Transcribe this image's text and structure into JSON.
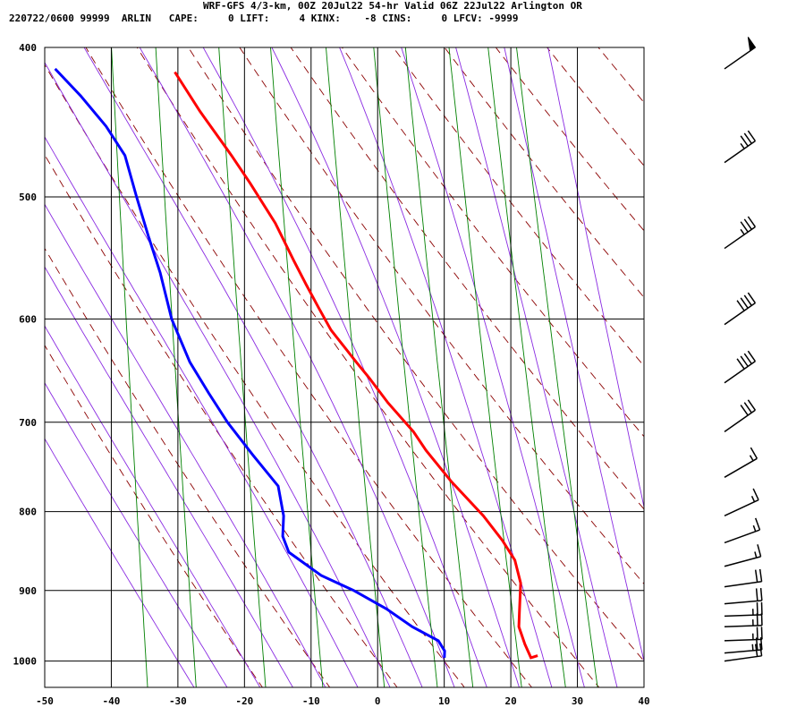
{
  "header": {
    "line1": "WRF-GFS 4/3-km, 00Z 20Jul22 54-hr Valid 06Z 22Jul22 Arlington OR",
    "line2": "220722/0600 99999  ARLIN   CAPE:     0 LIFT:     4 KINX:    -8 CINS:     0 LFCV: -9999"
  },
  "colors": {
    "temperature": "#ff0000",
    "dewpoint": "#0000ff",
    "dry_adiabat": "#8b0000",
    "moist_adiabat": "#8a2be2",
    "mixing_ratio": "#008000",
    "grid": "#000000"
  },
  "chart_data": {
    "type": "line",
    "subtype": "skew-T log-p sounding",
    "x_axis": {
      "unit": "degC",
      "range": [
        -50,
        40
      ],
      "ticks": [
        "-50",
        "-40",
        "-30",
        "-20",
        "-10",
        "0",
        "10",
        "20",
        "30",
        "40"
      ]
    },
    "y_axis": {
      "unit": "hPa",
      "scale": "log",
      "range": [
        1040,
        400
      ],
      "ticks": [
        "400",
        "500",
        "600",
        "700",
        "800",
        "900",
        "1000"
      ]
    },
    "series": [
      {
        "key": "temperature",
        "points": [
          [
            24,
            992
          ],
          [
            23,
            995
          ],
          [
            22,
            975
          ],
          [
            21,
            950
          ],
          [
            21,
            930
          ],
          [
            21,
            910
          ],
          [
            21,
            890
          ],
          [
            20,
            860
          ],
          [
            18,
            835
          ],
          [
            15,
            805
          ],
          [
            10,
            765
          ],
          [
            6,
            730
          ],
          [
            4,
            710
          ],
          [
            0,
            680
          ],
          [
            -3,
            655
          ],
          [
            -5,
            640
          ],
          [
            -9,
            610
          ],
          [
            -11,
            590
          ],
          [
            -13,
            570
          ],
          [
            -15,
            550
          ],
          [
            -18,
            520
          ],
          [
            -22,
            490
          ],
          [
            -25,
            470
          ],
          [
            -30,
            440
          ],
          [
            -34,
            415
          ]
        ]
      },
      {
        "key": "dewpoint",
        "points": [
          [
            10,
            995
          ],
          [
            10,
            985
          ],
          [
            9,
            970
          ],
          [
            5,
            950
          ],
          [
            1,
            925
          ],
          [
            -4,
            900
          ],
          [
            -9,
            880
          ],
          [
            -14,
            850
          ],
          [
            -15,
            830
          ],
          [
            -15,
            805
          ],
          [
            -16,
            770
          ],
          [
            -20,
            735
          ],
          [
            -24,
            700
          ],
          [
            -27,
            670
          ],
          [
            -30,
            640
          ],
          [
            -33,
            600
          ],
          [
            -35,
            560
          ],
          [
            -37,
            530
          ],
          [
            -39,
            500
          ],
          [
            -41,
            470
          ],
          [
            -44,
            450
          ],
          [
            -48,
            430
          ],
          [
            -52,
            413
          ]
        ]
      }
    ],
    "wind_barbs": [
      {
        "pressure": 413,
        "direction_deg": 235,
        "speed_kt": 50
      },
      {
        "pressure": 475,
        "direction_deg": 235,
        "speed_kt": 35
      },
      {
        "pressure": 540,
        "direction_deg": 235,
        "speed_kt": 35
      },
      {
        "pressure": 605,
        "direction_deg": 235,
        "speed_kt": 40
      },
      {
        "pressure": 660,
        "direction_deg": 235,
        "speed_kt": 40
      },
      {
        "pressure": 710,
        "direction_deg": 235,
        "speed_kt": 30
      },
      {
        "pressure": 760,
        "direction_deg": 240,
        "speed_kt": 15
      },
      {
        "pressure": 805,
        "direction_deg": 245,
        "speed_kt": 15
      },
      {
        "pressure": 838,
        "direction_deg": 250,
        "speed_kt": 15
      },
      {
        "pressure": 868,
        "direction_deg": 255,
        "speed_kt": 15
      },
      {
        "pressure": 895,
        "direction_deg": 262,
        "speed_kt": 20
      },
      {
        "pressure": 918,
        "direction_deg": 265,
        "speed_kt": 20
      },
      {
        "pressure": 935,
        "direction_deg": 268,
        "speed_kt": 25
      },
      {
        "pressure": 950,
        "direction_deg": 268,
        "speed_kt": 25
      },
      {
        "pressure": 970,
        "direction_deg": 268,
        "speed_kt": 25
      },
      {
        "pressure": 988,
        "direction_deg": 265,
        "speed_kt": 25
      },
      {
        "pressure": 1000,
        "direction_deg": 262,
        "speed_kt": 20
      }
    ],
    "grid": true
  }
}
